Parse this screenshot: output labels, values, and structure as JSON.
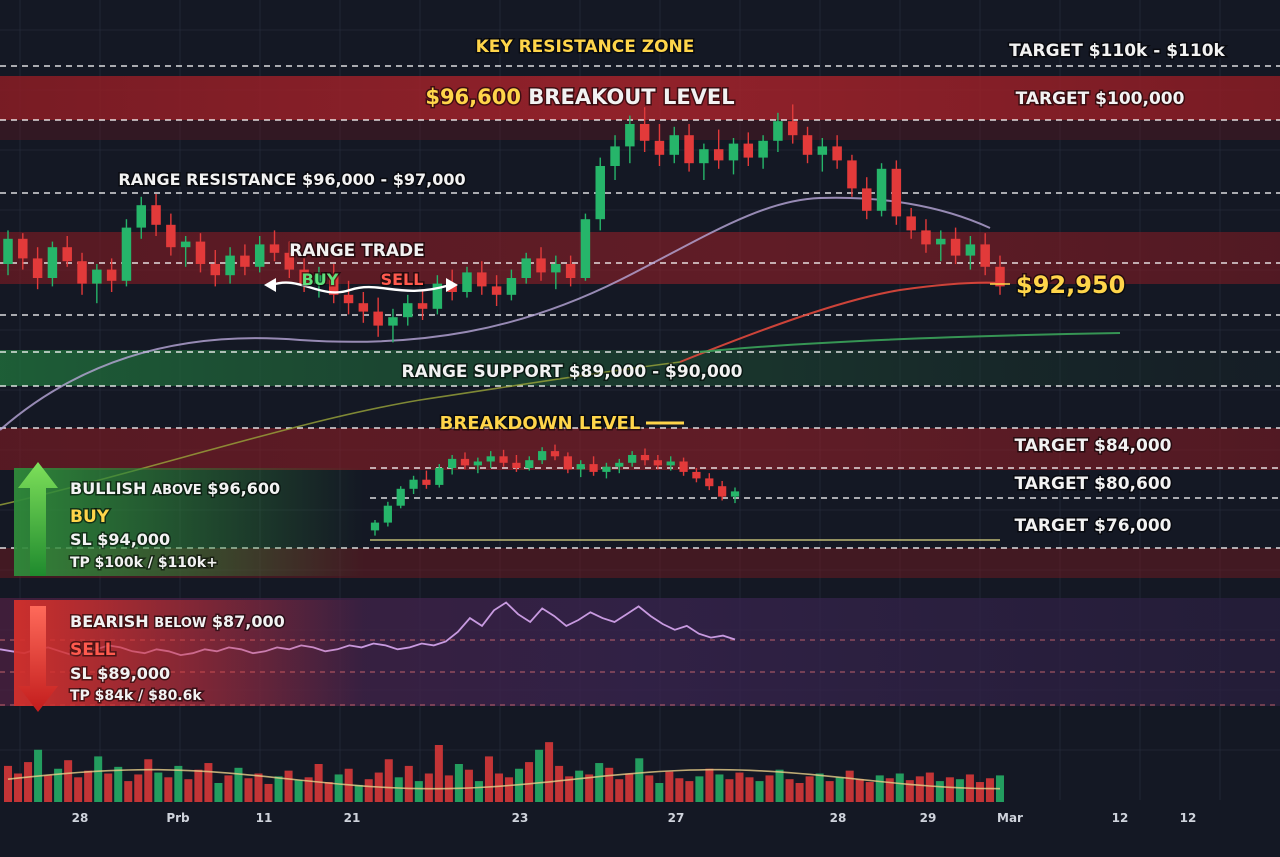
{
  "chart_data": {
    "type": "candlestick",
    "instrument_price_label": "$92,950",
    "x_tick_labels": [
      "28",
      "Prb",
      "11",
      "21",
      "23",
      "27",
      "28",
      "29",
      "Mar",
      "12",
      "12"
    ],
    "levels": [
      {
        "label": "KEY RESISTANCE ZONE",
        "style": "dashed"
      },
      {
        "label_value": "$96,600",
        "label_text": "BREAKOUT LEVEL",
        "style": "band-red"
      },
      {
        "label": "RANGE RESISTANCE $96,000 - $97,000",
        "style": "dashed"
      },
      {
        "label": "RANGE SUPPORT $89,000 - $90,000",
        "style": "band-green"
      },
      {
        "label": "BREAKDOWN LEVEL",
        "style": "band-red"
      }
    ],
    "targets": [
      "TARGET $110k - $110k",
      "TARGET $100,000",
      "TARGET $84,000",
      "TARGET $80,600",
      "TARGET $76,000"
    ],
    "range_trade": {
      "title": "RANGE TRADE",
      "buy": "BUY",
      "sell": "SELL"
    },
    "bullish_box": {
      "title_main": "BULLISH",
      "title_small": "ABOVE",
      "title_value": "$96,600",
      "action": "BUY",
      "sl": "SL $94,000",
      "tp": "TP $100k / $110k+"
    },
    "bearish_box": {
      "title_main": "BEARISH",
      "title_small": "BELOW",
      "title_value": "$87,000",
      "action": "SELL",
      "sl": "SL $89,000",
      "tp": "TP $84k / $80.6k"
    },
    "candles_upper": [
      [
        94.0,
        95.2,
        93.6,
        94.9
      ],
      [
        94.9,
        95.1,
        93.8,
        94.2
      ],
      [
        94.2,
        94.6,
        93.1,
        93.5
      ],
      [
        93.5,
        94.8,
        93.2,
        94.6
      ],
      [
        94.6,
        95.0,
        93.9,
        94.1
      ],
      [
        94.1,
        94.4,
        92.9,
        93.3
      ],
      [
        93.3,
        94.0,
        92.6,
        93.8
      ],
      [
        93.8,
        94.2,
        93.0,
        93.4
      ],
      [
        93.4,
        95.6,
        93.2,
        95.3
      ],
      [
        95.3,
        96.4,
        94.9,
        96.1
      ],
      [
        96.1,
        96.5,
        95.0,
        95.4
      ],
      [
        95.4,
        95.8,
        94.3,
        94.6
      ],
      [
        94.6,
        95.0,
        93.9,
        94.8
      ],
      [
        94.8,
        95.1,
        93.7,
        94.0
      ],
      [
        94.0,
        94.5,
        93.2,
        93.6
      ],
      [
        93.6,
        94.6,
        93.3,
        94.3
      ],
      [
        94.3,
        94.7,
        93.6,
        93.9
      ],
      [
        93.9,
        95.0,
        93.7,
        94.7
      ],
      [
        94.7,
        95.2,
        94.1,
        94.4
      ],
      [
        94.4,
        94.8,
        93.5,
        93.8
      ],
      [
        93.8,
        94.2,
        93.0,
        93.3
      ],
      [
        93.3,
        93.9,
        92.8,
        93.6
      ],
      [
        93.6,
        94.0,
        92.6,
        92.9
      ],
      [
        92.9,
        93.4,
        92.2,
        92.6
      ],
      [
        92.6,
        93.0,
        91.9,
        92.3
      ],
      [
        92.3,
        92.8,
        91.4,
        91.8
      ],
      [
        91.8,
        92.4,
        91.2,
        92.1
      ],
      [
        92.1,
        92.9,
        91.8,
        92.6
      ],
      [
        92.6,
        93.1,
        92.0,
        92.4
      ],
      [
        92.4,
        93.6,
        92.2,
        93.3
      ],
      [
        93.3,
        93.8,
        92.7,
        93.0
      ],
      [
        93.0,
        93.9,
        92.8,
        93.7
      ],
      [
        93.7,
        94.1,
        92.9,
        93.2
      ],
      [
        93.2,
        93.6,
        92.5,
        92.9
      ],
      [
        92.9,
        93.8,
        92.7,
        93.5
      ],
      [
        93.5,
        94.4,
        93.3,
        94.2
      ],
      [
        94.2,
        94.6,
        93.4,
        93.7
      ],
      [
        93.7,
        94.3,
        93.1,
        94.0
      ],
      [
        94.0,
        94.3,
        93.2,
        93.5
      ],
      [
        93.5,
        95.8,
        93.4,
        95.6
      ],
      [
        95.6,
        97.8,
        95.2,
        97.5
      ],
      [
        97.5,
        98.6,
        97.0,
        98.2
      ],
      [
        98.2,
        99.3,
        97.6,
        99.0
      ],
      [
        99.0,
        99.6,
        98.0,
        98.4
      ],
      [
        98.4,
        99.0,
        97.5,
        97.9
      ],
      [
        97.9,
        98.9,
        97.6,
        98.6
      ],
      [
        98.6,
        99.0,
        97.3,
        97.6
      ],
      [
        97.6,
        98.3,
        97.0,
        98.1
      ],
      [
        98.1,
        98.8,
        97.4,
        97.7
      ],
      [
        97.7,
        98.5,
        97.2,
        98.3
      ],
      [
        98.3,
        98.7,
        97.5,
        97.8
      ],
      [
        97.8,
        98.6,
        97.4,
        98.4
      ],
      [
        98.4,
        99.4,
        98.0,
        99.1
      ],
      [
        99.1,
        99.7,
        98.3,
        98.6
      ],
      [
        98.6,
        98.9,
        97.6,
        97.9
      ],
      [
        97.9,
        98.5,
        97.3,
        98.2
      ],
      [
        98.2,
        98.6,
        97.4,
        97.7
      ],
      [
        97.7,
        97.9,
        96.4,
        96.7
      ],
      [
        96.7,
        97.1,
        95.6,
        95.9
      ],
      [
        95.9,
        97.6,
        95.7,
        97.4
      ],
      [
        97.4,
        97.7,
        95.4,
        95.7
      ],
      [
        95.7,
        96.0,
        94.9,
        95.2
      ],
      [
        95.2,
        95.6,
        94.4,
        94.7
      ],
      [
        94.7,
        95.2,
        94.1,
        94.9
      ],
      [
        94.9,
        95.3,
        94.0,
        94.3
      ],
      [
        94.3,
        95.0,
        93.8,
        94.7
      ],
      [
        94.7,
        95.1,
        93.6,
        93.9
      ],
      [
        93.9,
        94.3,
        92.9,
        93.2
      ]
    ],
    "candles_lower": [
      [
        80.2,
        81.0,
        79.8,
        80.8
      ],
      [
        80.8,
        82.4,
        80.5,
        82.1
      ],
      [
        82.1,
        83.6,
        81.9,
        83.4
      ],
      [
        83.4,
        84.4,
        83.0,
        84.1
      ],
      [
        84.1,
        84.8,
        83.4,
        83.7
      ],
      [
        83.7,
        85.3,
        83.5,
        85.0
      ],
      [
        85.0,
        86.0,
        84.5,
        85.7
      ],
      [
        85.7,
        86.2,
        84.9,
        85.2
      ],
      [
        85.2,
        85.8,
        84.6,
        85.5
      ],
      [
        85.5,
        86.3,
        85.0,
        85.9
      ],
      [
        85.9,
        86.4,
        85.1,
        85.4
      ],
      [
        85.4,
        86.0,
        84.7,
        85.0
      ],
      [
        85.0,
        85.9,
        84.8,
        85.6
      ],
      [
        85.6,
        86.6,
        85.3,
        86.3
      ],
      [
        86.3,
        86.8,
        85.6,
        85.9
      ],
      [
        85.9,
        86.2,
        84.6,
        84.9
      ],
      [
        84.9,
        85.6,
        84.3,
        85.3
      ],
      [
        85.3,
        85.9,
        84.4,
        84.7
      ],
      [
        84.7,
        85.4,
        84.2,
        85.1
      ],
      [
        85.1,
        85.7,
        84.6,
        85.4
      ],
      [
        85.4,
        86.3,
        85.1,
        86.0
      ],
      [
        86.0,
        86.5,
        85.2,
        85.6
      ],
      [
        85.6,
        86.0,
        84.9,
        85.2
      ],
      [
        85.2,
        85.9,
        84.8,
        85.5
      ],
      [
        85.5,
        85.8,
        84.4,
        84.7
      ],
      [
        84.7,
        85.0,
        83.9,
        84.2
      ],
      [
        84.2,
        84.6,
        83.3,
        83.6
      ],
      [
        83.6,
        84.0,
        82.5,
        82.8
      ],
      [
        82.8,
        83.5,
        82.3,
        83.2
      ]
    ],
    "volume": [
      38,
      30,
      42,
      55,
      28,
      35,
      44,
      26,
      33,
      48,
      30,
      37,
      22,
      29,
      45,
      31,
      26,
      38,
      24,
      34,
      41,
      20,
      28,
      36,
      25,
      30,
      19,
      27,
      33,
      23,
      26,
      40,
      21,
      29,
      35,
      18,
      24,
      31,
      45,
      26,
      38,
      22,
      30,
      60,
      28,
      40,
      34,
      22,
      48,
      30,
      26,
      35,
      42,
      55,
      63,
      38,
      27,
      33,
      29,
      41,
      36,
      24,
      30,
      46,
      28,
      20,
      32,
      25,
      22,
      27,
      35,
      29,
      24,
      31,
      26,
      22,
      28,
      34,
      24,
      20,
      27,
      30,
      22,
      26,
      33,
      24,
      21,
      28,
      25,
      30,
      23,
      27,
      31,
      22,
      26,
      24,
      29,
      21,
      25,
      28
    ],
    "rsi_series": [
      46,
      45,
      44,
      46,
      47,
      45,
      43,
      44,
      46,
      48,
      47,
      45,
      44,
      46,
      45,
      43,
      44,
      46,
      45,
      47,
      46,
      44,
      45,
      47,
      46,
      48,
      47,
      45,
      46,
      48,
      47,
      49,
      48,
      46,
      47,
      49,
      48,
      50,
      55,
      62,
      58,
      66,
      70,
      64,
      60,
      67,
      63,
      58,
      61,
      65,
      62,
      60,
      64,
      68,
      63,
      59,
      56,
      58,
      54,
      52,
      53,
      51
    ],
    "moving_averages": [
      {
        "color": "#b8a7d8"
      },
      {
        "color": "#e0483c"
      },
      {
        "color": "#3aa35a"
      },
      {
        "color": "#9aa53a"
      }
    ],
    "colors": {
      "up": "#26b56a",
      "down": "#e23a3a",
      "background": "#141824",
      "target_text": "#ffffff",
      "highlight": "#ffd54a"
    }
  }
}
